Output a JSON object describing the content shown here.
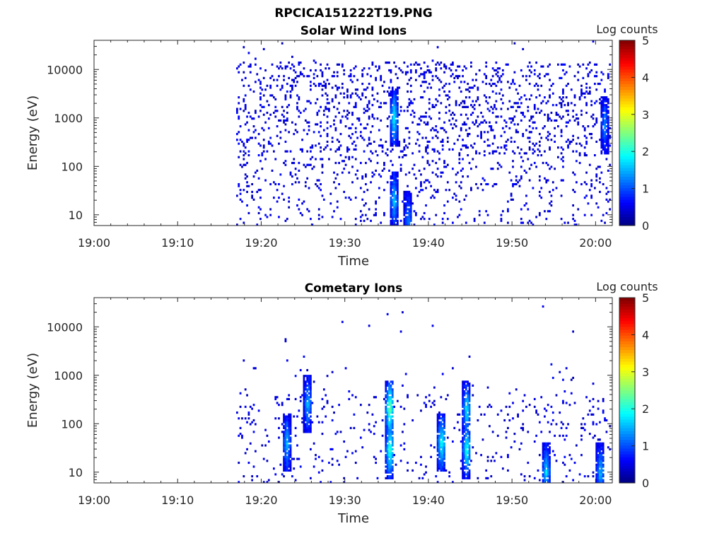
{
  "figure_title": "RPCICA151222T19.PNG",
  "chart_data": [
    {
      "type": "heatmap",
      "title": "Solar Wind Ions",
      "xlabel": "Time",
      "ylabel": "Energy (eV)",
      "xlim": [
        "19:00",
        "20:02"
      ],
      "ylim": [
        6,
        40000
      ],
      "yscale": "log",
      "x_ticks": [
        "19:00",
        "19:10",
        "19:20",
        "19:30",
        "19:40",
        "19:50",
        "20:00"
      ],
      "y_ticks": [
        "10",
        "100",
        "1000",
        "10000"
      ],
      "colorbar": {
        "label": "Log counts",
        "range": [
          0,
          5
        ],
        "ticks": [
          "0",
          "1",
          "2",
          "3",
          "4",
          "5"
        ],
        "colormap": "jet"
      },
      "data_start": "19:17",
      "hotspots": [
        {
          "time": "19:35.8",
          "energy": 1000,
          "log_counts": 1.8
        },
        {
          "time": "19:35.8",
          "energy": 20,
          "log_counts": 1.5
        },
        {
          "time": "19:37.5",
          "energy": 8,
          "log_counts": 1.2
        },
        {
          "time": "20:01",
          "energy": 700,
          "log_counts": 1.2
        }
      ]
    },
    {
      "type": "heatmap",
      "title": "Cometary Ions",
      "xlabel": "Time",
      "ylabel": "Energy (eV)",
      "xlim": [
        "19:00",
        "20:02"
      ],
      "ylim": [
        6,
        40000
      ],
      "yscale": "log",
      "x_ticks": [
        "19:00",
        "19:10",
        "19:20",
        "19:30",
        "19:40",
        "19:50",
        "20:00"
      ],
      "y_ticks": [
        "10",
        "100",
        "1000",
        "10000"
      ],
      "colorbar": {
        "label": "Log counts",
        "range": [
          0,
          5
        ],
        "ticks": [
          "0",
          "1",
          "2",
          "3",
          "4",
          "5"
        ],
        "colormap": "jet"
      },
      "data_start": "19:17",
      "hotspots": [
        {
          "time": "19:35.3",
          "energy": 200,
          "log_counts": 2.5
        },
        {
          "time": "19:35.3",
          "energy": 30,
          "log_counts": 2.2
        },
        {
          "time": "19:41.5",
          "energy": 40,
          "log_counts": 2.0
        },
        {
          "time": "19:44.5",
          "energy": 30,
          "log_counts": 2.0
        },
        {
          "time": "19:44.5",
          "energy": 200,
          "log_counts": 1.8
        },
        {
          "time": "19:25.5",
          "energy": 250,
          "log_counts": 1.5
        },
        {
          "time": "19:23",
          "energy": 40,
          "log_counts": 1.5
        },
        {
          "time": "19:54",
          "energy": 10,
          "log_counts": 1.6
        },
        {
          "time": "20:00.5",
          "energy": 10,
          "log_counts": 1.5
        }
      ]
    }
  ]
}
